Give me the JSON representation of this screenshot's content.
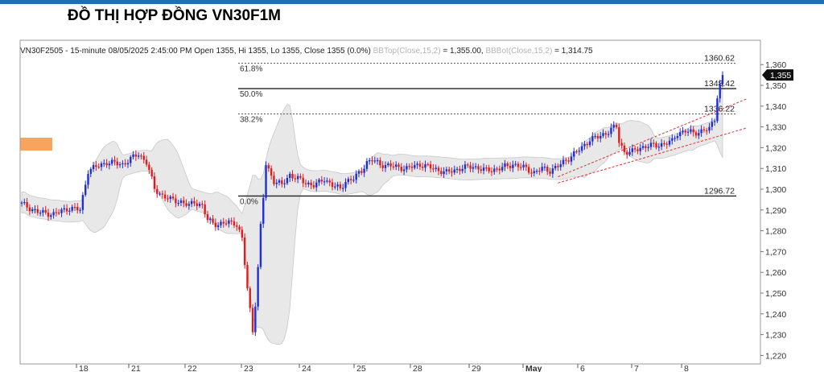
{
  "header": {
    "title": "ĐỒ THỊ HỢP ĐỒNG VN30F1M"
  },
  "info": {
    "symbol_line": "VN30F2505 - 15-minute 08/05/2025 2:45:00 PM Open 1355, Hi 1355, Lo 1355, Close 1355 (0.0%)",
    "bbtop_label": "BBTop(Close,15,2)",
    "bbtop_value": "= 1,355.00,",
    "bbbot_label": "BBBot(Close,15,2)",
    "bbbot_value": "= 1,314.75"
  },
  "colors": {
    "up": "#1f2fd8",
    "down": "#e01c1c",
    "band_fill": "#e8e8e8",
    "band_edge": "#c8c8c8",
    "trend": "#e83030",
    "price_tag": "#111111",
    "orange_box": "#f6a45e"
  },
  "chart_data": {
    "type": "candlestick",
    "title": "ĐỒ THỊ HỢP ĐỒNG VN30F1M",
    "xlabel": "",
    "ylabel": "",
    "x_ticks": [
      "18",
      "21",
      "22",
      "23",
      "24",
      "25",
      "28",
      "29",
      "May",
      "6",
      "7",
      "8"
    ],
    "y_ticks": [
      "1,360",
      "1,350",
      "1,340",
      "1,330",
      "1,320",
      "1,310",
      "1,300",
      "1,290",
      "1,280",
      "1,270",
      "1,260",
      "1,250",
      "1,240",
      "1,230",
      "1,220"
    ],
    "ylim": [
      1216,
      1362
    ],
    "last_price_label": "1,355",
    "series_close": [
      [
        0,
        1293
      ],
      [
        6,
        1289
      ],
      [
        12,
        1288
      ],
      [
        18,
        1291
      ],
      [
        22,
        1290
      ],
      [
        25,
        1309
      ],
      [
        32,
        1313
      ],
      [
        38,
        1312
      ],
      [
        44,
        1317
      ],
      [
        47,
        1313
      ],
      [
        48,
        1309
      ],
      [
        50,
        1300
      ],
      [
        53,
        1297
      ],
      [
        56,
        1295
      ],
      [
        60,
        1294
      ],
      [
        63,
        1292
      ],
      [
        65,
        1294
      ],
      [
        68,
        1292
      ],
      [
        70,
        1285
      ],
      [
        74,
        1283
      ],
      [
        78,
        1284
      ],
      [
        80,
        1284
      ],
      [
        81,
        1283
      ],
      [
        83,
        1276
      ],
      [
        85,
        1252
      ],
      [
        87,
        1232
      ],
      [
        88,
        1245
      ],
      [
        89,
        1262
      ],
      [
        90,
        1282
      ],
      [
        91,
        1296
      ],
      [
        92,
        1312
      ],
      [
        95,
        1304
      ],
      [
        98,
        1302
      ],
      [
        101,
        1307
      ],
      [
        104,
        1305
      ],
      [
        107,
        1303
      ],
      [
        110,
        1302
      ],
      [
        112,
        1303
      ],
      [
        114,
        1305
      ],
      [
        117,
        1302
      ],
      [
        120,
        1300
      ],
      [
        122,
        1304
      ],
      [
        125,
        1305
      ],
      [
        128,
        1309
      ],
      [
        130,
        1313
      ],
      [
        132,
        1314
      ],
      [
        135,
        1312
      ],
      [
        140,
        1311
      ],
      [
        145,
        1310
      ],
      [
        150,
        1312
      ],
      [
        155,
        1310
      ],
      [
        160,
        1308
      ],
      [
        165,
        1310
      ],
      [
        170,
        1311
      ],
      [
        175,
        1309
      ],
      [
        180,
        1310
      ],
      [
        185,
        1312
      ],
      [
        190,
        1310
      ],
      [
        193,
        1308
      ],
      [
        196,
        1310
      ],
      [
        199,
        1309
      ],
      [
        202,
        1311
      ],
      [
        205,
        1314
      ],
      [
        208,
        1317
      ],
      [
        211,
        1320
      ],
      [
        214,
        1324
      ],
      [
        217,
        1325
      ],
      [
        220,
        1327
      ],
      [
        222,
        1329
      ],
      [
        224,
        1330
      ],
      [
        225,
        1323
      ],
      [
        227,
        1318
      ],
      [
        230,
        1318
      ],
      [
        233,
        1320
      ],
      [
        236,
        1321
      ],
      [
        239,
        1321
      ],
      [
        242,
        1322
      ],
      [
        245,
        1323
      ],
      [
        247,
        1327
      ],
      [
        250,
        1328
      ],
      [
        253,
        1327
      ],
      [
        256,
        1328
      ],
      [
        259,
        1329
      ],
      [
        261,
        1334
      ],
      [
        262,
        1345
      ],
      [
        263,
        1350
      ],
      [
        264,
        1355
      ]
    ],
    "bollinger": {
      "period": 15,
      "stddev": 2,
      "top_last": 1355.0,
      "bot_last": 1314.75
    },
    "fibonacci": [
      {
        "label": "61.8%",
        "value": 1360.62,
        "value_label": "1360.62"
      },
      {
        "label": "50.0%",
        "value": 1348.42,
        "value_label": "1348.42"
      },
      {
        "label": "38.2%",
        "value": 1336.22,
        "value_label": "1336.22"
      },
      {
        "label": "0.0%",
        "value": 1296.72,
        "value_label": "1296.72"
      }
    ],
    "trend_channel": [
      {
        "from": [
          202,
          1306
        ],
        "to": [
          264,
          1342
        ]
      },
      {
        "from": [
          202,
          1303
        ],
        "to": [
          264,
          1328
        ]
      }
    ],
    "grid": false,
    "legend": "none"
  }
}
